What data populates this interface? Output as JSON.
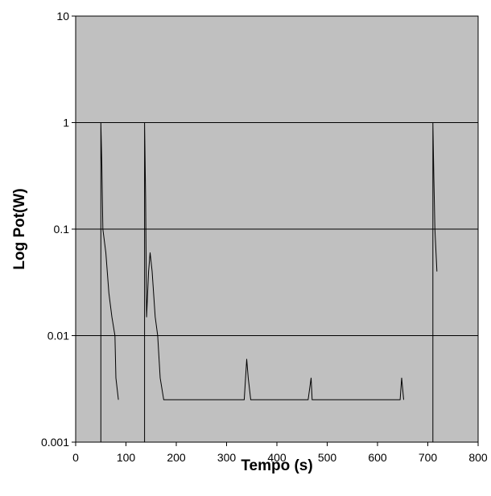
{
  "chart_data": {
    "type": "line",
    "title": "",
    "xlabel": "Tempo (s)",
    "ylabel": "Log Pot(W)",
    "xlim": [
      0,
      800
    ],
    "ylim": [
      0.001,
      10
    ],
    "yscale": "log",
    "grid": "horizontal",
    "legend": "none",
    "x_ticks": [
      "0",
      "100",
      "200",
      "300",
      "400",
      "500",
      "600",
      "700",
      "800"
    ],
    "y_ticks": [
      "0.001",
      "0.01",
      "0.1",
      "1",
      "10"
    ],
    "series": [
      {
        "points": [
          [
            50,
            0.001
          ],
          [
            50,
            1
          ],
          [
            52,
            0.4
          ],
          [
            54,
            0.1
          ],
          [
            60,
            0.06
          ],
          [
            66,
            0.025
          ],
          [
            72,
            0.015
          ],
          [
            78,
            0.01
          ],
          [
            80,
            0.004
          ],
          [
            85,
            0.0025
          ]
        ]
      },
      {
        "points": [
          [
            137,
            0.001
          ],
          [
            137,
            1
          ],
          [
            139,
            0.2
          ],
          [
            141,
            0.015
          ],
          [
            145,
            0.04
          ],
          [
            148,
            0.06
          ],
          [
            152,
            0.04
          ],
          [
            158,
            0.015
          ],
          [
            163,
            0.01
          ],
          [
            168,
            0.004
          ],
          [
            175,
            0.0025
          ],
          [
            335,
            0.0025
          ],
          [
            340,
            0.006
          ],
          [
            343,
            0.004
          ],
          [
            348,
            0.0025
          ],
          [
            462,
            0.0025
          ],
          [
            468,
            0.004
          ],
          [
            470,
            0.0025
          ],
          [
            645,
            0.0025
          ],
          [
            648,
            0.004
          ],
          [
            652,
            0.0025
          ]
        ]
      },
      {
        "points": [
          [
            710,
            0.001
          ],
          [
            710,
            1
          ],
          [
            712,
            0.3
          ],
          [
            714,
            0.1
          ],
          [
            718,
            0.04
          ]
        ]
      }
    ]
  },
  "colors": {
    "plot_background": "#c0c0c0",
    "line": "#000000",
    "gridline": "#000000"
  }
}
